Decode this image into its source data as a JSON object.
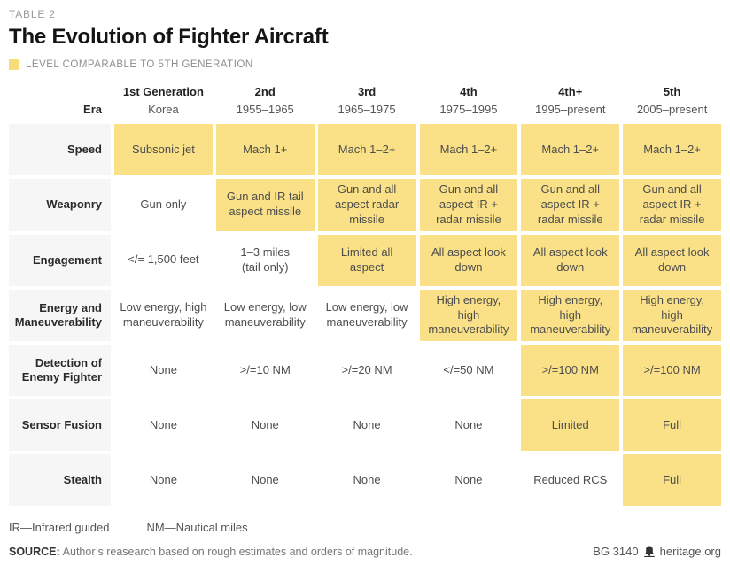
{
  "meta": {
    "table_label": "TABLE 2",
    "title": "The Evolution of Fighter Aircraft",
    "legend_label": "LEVEL COMPARABLE TO 5TH GENERATION"
  },
  "colors": {
    "highlight": "#fae187",
    "legend_swatch": "#f7dd79",
    "row_label_bg": "#f6f6f6"
  },
  "table": {
    "era_label": "Era",
    "generations": [
      "1st Generation",
      "2nd",
      "3rd",
      "4th",
      "4th+",
      "5th"
    ],
    "eras": [
      "Korea",
      "1955–1965",
      "1965–1975",
      "1975–1995",
      "1995–present",
      "2005–present"
    ],
    "rows": [
      {
        "label": "Speed",
        "cells": [
          {
            "text": "Subsonic jet",
            "highlight": true
          },
          {
            "text": "Mach 1+",
            "highlight": true
          },
          {
            "text": "Mach 1–2+",
            "highlight": true
          },
          {
            "text": "Mach 1–2+",
            "highlight": true
          },
          {
            "text": "Mach 1–2+",
            "highlight": true
          },
          {
            "text": "Mach 1–2+",
            "highlight": true
          }
        ]
      },
      {
        "label": "Weaponry",
        "cells": [
          {
            "text": "Gun only",
            "highlight": false
          },
          {
            "text": "Gun and IR tail aspect missile",
            "highlight": true
          },
          {
            "text": "Gun and all aspect radar missile",
            "highlight": true
          },
          {
            "text": "Gun and all aspect IR + radar missile",
            "highlight": true
          },
          {
            "text": "Gun and all aspect IR + radar missile",
            "highlight": true
          },
          {
            "text": "Gun and all aspect IR + radar missile",
            "highlight": true
          }
        ]
      },
      {
        "label": "Engagement",
        "cells": [
          {
            "text": "</= 1,500 feet",
            "highlight": false
          },
          {
            "text": "1–3 miles\n(tail only)",
            "highlight": false
          },
          {
            "text": "Limited all aspect",
            "highlight": true
          },
          {
            "text": "All aspect look down",
            "highlight": true
          },
          {
            "text": "All aspect look down",
            "highlight": true
          },
          {
            "text": "All aspect look down",
            "highlight": true
          }
        ]
      },
      {
        "label": "Energy and Maneuverability",
        "cells": [
          {
            "text": "Low energy, high maneuverability",
            "highlight": false
          },
          {
            "text": "Low energy, low maneuverability",
            "highlight": false
          },
          {
            "text": "Low energy, low maneuverability",
            "highlight": false
          },
          {
            "text": "High energy, high maneuverability",
            "highlight": true
          },
          {
            "text": "High energy, high maneuverability",
            "highlight": true
          },
          {
            "text": "High energy, high maneuverability",
            "highlight": true
          }
        ]
      },
      {
        "label": "Detection of Enemy Fighter",
        "cells": [
          {
            "text": "None",
            "highlight": false
          },
          {
            "text": ">/=10 NM",
            "highlight": false
          },
          {
            "text": ">/=20 NM",
            "highlight": false
          },
          {
            "text": "</=50 NM",
            "highlight": false
          },
          {
            "text": ">/=100 NM",
            "highlight": true
          },
          {
            "text": ">/=100 NM",
            "highlight": true
          }
        ]
      },
      {
        "label": "Sensor Fusion",
        "cells": [
          {
            "text": "None",
            "highlight": false
          },
          {
            "text": "None",
            "highlight": false
          },
          {
            "text": "None",
            "highlight": false
          },
          {
            "text": "None",
            "highlight": false
          },
          {
            "text": "Limited",
            "highlight": true
          },
          {
            "text": "Full",
            "highlight": true
          }
        ]
      },
      {
        "label": "Stealth",
        "cells": [
          {
            "text": "None",
            "highlight": false
          },
          {
            "text": "None",
            "highlight": false
          },
          {
            "text": "None",
            "highlight": false
          },
          {
            "text": "None",
            "highlight": false
          },
          {
            "text": "Reduced RCS",
            "highlight": false
          },
          {
            "text": "Full",
            "highlight": true
          }
        ]
      }
    ]
  },
  "footnotes": [
    "IR—Infrared guided",
    "NM—Nautical miles"
  ],
  "source": {
    "label": "SOURCE:",
    "text": "Author’s reasearch based on rough estimates and orders of magnitude."
  },
  "footer": {
    "doc_id": "BG 3140",
    "site": "heritage.org"
  }
}
